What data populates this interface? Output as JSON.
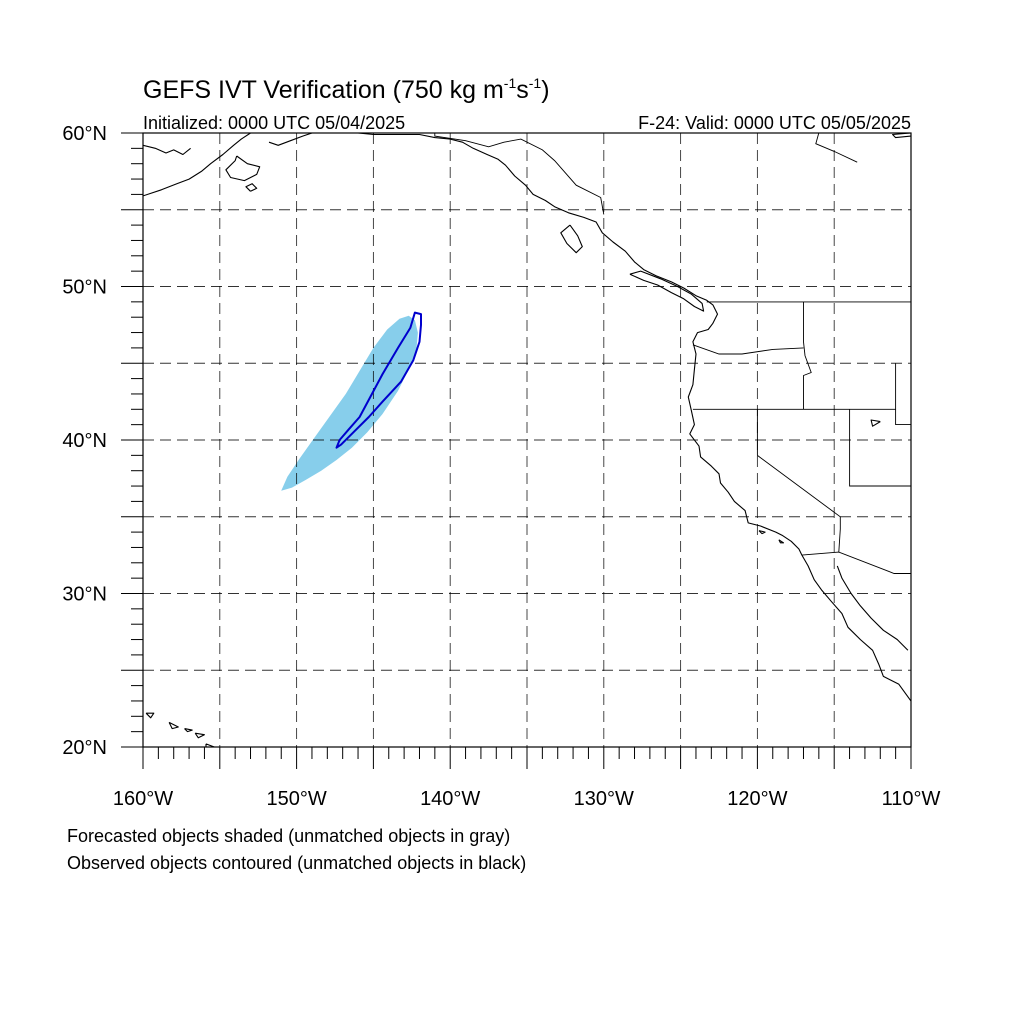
{
  "title": {
    "main": "GEFS IVT Verification (750 kg m",
    "exp1": "-1",
    "mid": "s",
    "exp2": "-1",
    "close": ")"
  },
  "subtitle": {
    "left": "Initialized: 0000 UTC 05/04/2025",
    "right": "F-24: Valid: 0000 UTC 05/05/2025"
  },
  "footnotes": [
    "Forecasted objects shaded (unmatched objects in gray)",
    "Observed objects contoured (unmatched objects in black)"
  ],
  "map": {
    "lon_range": [
      -160,
      -110
    ],
    "lat_range": [
      20,
      60
    ],
    "lat_labels": [
      {
        "value": 60,
        "text": "60°N"
      },
      {
        "value": 50,
        "text": "50°N"
      },
      {
        "value": 40,
        "text": "40°N"
      },
      {
        "value": 30,
        "text": "30°N"
      },
      {
        "value": 20,
        "text": "20°N"
      }
    ],
    "lon_labels": [
      {
        "value": -160,
        "text": "160°W"
      },
      {
        "value": -150,
        "text": "150°W"
      },
      {
        "value": -140,
        "text": "140°W"
      },
      {
        "value": -130,
        "text": "130°W"
      },
      {
        "value": -120,
        "text": "120°W"
      },
      {
        "value": -110,
        "text": "110°W"
      }
    ],
    "grid_lons": [
      -155,
      -150,
      -145,
      -140,
      -135,
      -130,
      -125,
      -120,
      -115
    ],
    "grid_lats": [
      25,
      30,
      35,
      40,
      45,
      50,
      55
    ],
    "forecast_color": "#87ceeb",
    "observed_color": "#0000cd",
    "coast_color": "#000000",
    "forecast_object": [
      [
        -151.0,
        36.7
      ],
      [
        -150.3,
        36.9
      ],
      [
        -149.4,
        37.4
      ],
      [
        -148.4,
        38.0
      ],
      [
        -147.4,
        38.7
      ],
      [
        -146.4,
        39.5
      ],
      [
        -145.4,
        40.5
      ],
      [
        -144.4,
        41.7
      ],
      [
        -143.4,
        43.2
      ],
      [
        -142.7,
        44.6
      ],
      [
        -142.2,
        45.9
      ],
      [
        -142.1,
        47.0
      ],
      [
        -142.3,
        47.8
      ],
      [
        -142.7,
        48.1
      ],
      [
        -143.3,
        47.9
      ],
      [
        -144.1,
        47.2
      ],
      [
        -145.0,
        46.0
      ],
      [
        -145.9,
        44.5
      ],
      [
        -146.8,
        43.0
      ],
      [
        -147.8,
        41.6
      ],
      [
        -148.8,
        40.2
      ],
      [
        -149.8,
        38.8
      ],
      [
        -150.6,
        37.6
      ]
    ],
    "observed_object": [
      [
        -147.4,
        39.5
      ],
      [
        -147.2,
        40.0
      ],
      [
        -146.6,
        40.7
      ],
      [
        -145.9,
        41.5
      ],
      [
        -145.2,
        42.8
      ],
      [
        -144.4,
        44.3
      ],
      [
        -143.4,
        46.0
      ],
      [
        -142.6,
        47.3
      ],
      [
        -142.3,
        48.3
      ],
      [
        -141.9,
        48.2
      ],
      [
        -141.9,
        47.5
      ],
      [
        -142.0,
        46.4
      ],
      [
        -142.4,
        45.2
      ],
      [
        -143.2,
        43.8
      ],
      [
        -144.4,
        42.5
      ],
      [
        -145.3,
        41.5
      ],
      [
        -146.3,
        40.5
      ],
      [
        -147.1,
        39.7
      ]
    ],
    "coastlines": [
      [
        [
          -160,
          55.9
        ],
        [
          -158.8,
          56.3
        ],
        [
          -157.8,
          56.7
        ],
        [
          -157.0,
          57.0
        ],
        [
          -156.2,
          57.5
        ],
        [
          -155.6,
          58.0
        ],
        [
          -154.8,
          58.6
        ],
        [
          -154.1,
          59.2
        ],
        [
          -153.6,
          59.6
        ],
        [
          -153.0,
          60.0
        ]
      ],
      [
        [
          -160,
          59.2
        ],
        [
          -159.2,
          59.0
        ],
        [
          -158.5,
          58.7
        ],
        [
          -158.0,
          58.9
        ],
        [
          -157.4,
          58.6
        ],
        [
          -156.9,
          59.0
        ]
      ],
      [
        [
          -153.9,
          58.5
        ],
        [
          -153.2,
          58.0
        ],
        [
          -152.4,
          57.8
        ],
        [
          -152.6,
          57.3
        ],
        [
          -153.4,
          56.9
        ],
        [
          -154.3,
          57.1
        ],
        [
          -154.6,
          57.6
        ],
        [
          -154.0,
          58.2
        ],
        [
          -153.9,
          58.5
        ]
      ],
      [
        [
          -153.0,
          56.2
        ],
        [
          -152.6,
          56.4
        ],
        [
          -152.9,
          56.7
        ],
        [
          -153.3,
          56.5
        ],
        [
          -153.0,
          56.2
        ]
      ],
      [
        [
          -151.8,
          59.4
        ],
        [
          -151.2,
          59.2
        ],
        [
          -150.4,
          59.5
        ],
        [
          -149.6,
          59.8
        ],
        [
          -149.0,
          60.0
        ]
      ],
      [
        [
          -146.0,
          60.0
        ],
        [
          -145.0,
          59.9
        ],
        [
          -144.0,
          59.9
        ],
        [
          -143.0,
          59.9
        ],
        [
          -142.0,
          59.9
        ],
        [
          -141.0,
          59.7
        ],
        [
          -140.0,
          59.6
        ],
        [
          -139.2,
          59.4
        ],
        [
          -138.5,
          59.0
        ],
        [
          -137.6,
          58.6
        ],
        [
          -136.9,
          58.3
        ],
        [
          -136.4,
          57.9
        ],
        [
          -135.8,
          57.2
        ],
        [
          -135.1,
          56.6
        ],
        [
          -134.6,
          56.0
        ],
        [
          -133.8,
          55.6
        ],
        [
          -133.2,
          55.2
        ],
        [
          -132.3,
          54.8
        ],
        [
          -131.3,
          54.5
        ],
        [
          -130.5,
          54.2
        ],
        [
          -130.1,
          53.5
        ],
        [
          -129.4,
          52.9
        ],
        [
          -128.6,
          52.3
        ],
        [
          -128.0,
          51.6
        ],
        [
          -127.4,
          51.1
        ],
        [
          -126.6,
          50.7
        ],
        [
          -125.6,
          50.3
        ],
        [
          -124.8,
          49.9
        ],
        [
          -124.0,
          49.4
        ],
        [
          -123.3,
          49.1
        ],
        [
          -122.9,
          48.8
        ],
        [
          -122.6,
          48.2
        ],
        [
          -122.9,
          47.6
        ],
        [
          -123.2,
          47.2
        ],
        [
          -123.9,
          47.0
        ],
        [
          -124.2,
          46.4
        ],
        [
          -124.0,
          45.6
        ],
        [
          -124.1,
          44.6
        ],
        [
          -124.2,
          43.6
        ],
        [
          -124.5,
          42.8
        ],
        [
          -124.3,
          41.9
        ],
        [
          -124.1,
          41.0
        ],
        [
          -124.4,
          40.4
        ],
        [
          -123.8,
          39.6
        ],
        [
          -123.7,
          38.9
        ],
        [
          -123.0,
          38.3
        ],
        [
          -122.5,
          37.8
        ],
        [
          -122.4,
          37.2
        ],
        [
          -121.9,
          36.6
        ],
        [
          -121.5,
          36.0
        ],
        [
          -120.8,
          35.4
        ],
        [
          -120.6,
          34.6
        ],
        [
          -119.8,
          34.4
        ],
        [
          -118.8,
          34.0
        ],
        [
          -118.4,
          33.8
        ],
        [
          -117.8,
          33.4
        ],
        [
          -117.3,
          32.9
        ],
        [
          -117.1,
          32.5
        ],
        [
          -116.7,
          31.8
        ],
        [
          -116.3,
          30.9
        ],
        [
          -115.8,
          30.2
        ],
        [
          -115.2,
          29.5
        ],
        [
          -114.5,
          28.7
        ],
        [
          -114.1,
          27.8
        ],
        [
          -113.3,
          27.0
        ],
        [
          -112.5,
          26.3
        ],
        [
          -112.1,
          25.4
        ],
        [
          -111.8,
          24.6
        ],
        [
          -110.8,
          24.1
        ],
        [
          -110.0,
          23.0
        ]
      ],
      [
        [
          -132.2,
          54.0
        ],
        [
          -131.7,
          53.3
        ],
        [
          -131.4,
          52.6
        ],
        [
          -131.8,
          52.2
        ],
        [
          -132.4,
          52.8
        ],
        [
          -132.8,
          53.5
        ],
        [
          -132.2,
          54.0
        ]
      ],
      [
        [
          -128.3,
          50.8
        ],
        [
          -127.4,
          50.4
        ],
        [
          -126.5,
          50.1
        ],
        [
          -125.6,
          49.6
        ],
        [
          -124.8,
          49.2
        ],
        [
          -124.1,
          48.7
        ],
        [
          -123.5,
          48.4
        ],
        [
          -123.6,
          48.9
        ],
        [
          -124.3,
          49.5
        ],
        [
          -125.2,
          50.0
        ],
        [
          -126.3,
          50.5
        ],
        [
          -127.6,
          51.0
        ],
        [
          -128.3,
          50.8
        ]
      ],
      [
        [
          -114.8,
          31.8
        ],
        [
          -114.5,
          31.0
        ],
        [
          -113.9,
          30.0
        ],
        [
          -113.3,
          29.2
        ],
        [
          -112.6,
          28.4
        ],
        [
          -111.8,
          27.6
        ],
        [
          -110.9,
          27.0
        ],
        [
          -110.2,
          26.3
        ]
      ],
      [
        [
          -155.9,
          20.2
        ],
        [
          -155.1,
          19.9
        ],
        [
          -154.8,
          19.5
        ],
        [
          -155.5,
          19.2
        ],
        [
          -155.9,
          19.6
        ],
        [
          -155.9,
          20.2
        ]
      ],
      [
        [
          -156.6,
          20.9
        ],
        [
          -156.0,
          20.8
        ],
        [
          -156.4,
          20.6
        ],
        [
          -156.6,
          20.9
        ]
      ],
      [
        [
          -157.3,
          21.2
        ],
        [
          -156.8,
          21.1
        ],
        [
          -157.1,
          21.0
        ],
        [
          -157.3,
          21.2
        ]
      ],
      [
        [
          -158.3,
          21.6
        ],
        [
          -157.7,
          21.3
        ],
        [
          -158.1,
          21.2
        ],
        [
          -158.3,
          21.6
        ]
      ],
      [
        [
          -159.8,
          22.2
        ],
        [
          -159.3,
          22.2
        ],
        [
          -159.5,
          21.9
        ],
        [
          -159.8,
          22.2
        ]
      ],
      [
        [
          -119.9,
          34.1
        ],
        [
          -119.5,
          34.0
        ],
        [
          -119.7,
          33.9
        ],
        [
          -119.9,
          34.1
        ]
      ],
      [
        [
          -118.6,
          33.5
        ],
        [
          -118.3,
          33.3
        ],
        [
          -118.5,
          33.3
        ],
        [
          -118.6,
          33.5
        ]
      ],
      [
        [
          -112.0,
          41.2
        ],
        [
          -112.6,
          41.3
        ],
        [
          -112.5,
          40.9
        ],
        [
          -112.0,
          41.2
        ]
      ],
      [
        [
          -110.0,
          59.8
        ],
        [
          -111.0,
          59.7
        ],
        [
          -111.2,
          59.9
        ],
        [
          -110.0,
          60.0
        ]
      ]
    ],
    "borders": [
      [
        [
          -123.3,
          49.0
        ],
        [
          -110.0,
          49.0
        ]
      ],
      [
        [
          -141.0,
          60.0
        ],
        [
          -141.0,
          59.8
        ],
        [
          -139.0,
          59.5
        ],
        [
          -137.5,
          59.1
        ],
        [
          -136.5,
          59.4
        ],
        [
          -135.4,
          59.6
        ],
        [
          -134.0,
          58.9
        ],
        [
          -133.2,
          58.2
        ],
        [
          -131.8,
          56.6
        ],
        [
          -130.2,
          55.8
        ],
        [
          -130.0,
          54.7
        ]
      ],
      [
        [
          -124.2,
          46.2
        ],
        [
          -122.5,
          45.6
        ],
        [
          -121.0,
          45.6
        ],
        [
          -119.0,
          45.9
        ],
        [
          -117.0,
          46.0
        ]
      ],
      [
        [
          -117.0,
          49.0
        ],
        [
          -117.0,
          46.4
        ],
        [
          -116.9,
          45.5
        ],
        [
          -116.5,
          44.4
        ],
        [
          -117.0,
          44.2
        ],
        [
          -117.0,
          42.0
        ]
      ],
      [
        [
          -124.2,
          42.0
        ],
        [
          -111.0,
          42.0
        ]
      ],
      [
        [
          -120.0,
          42.0
        ],
        [
          -120.0,
          39.0
        ],
        [
          -114.6,
          35.0
        ],
        [
          -114.6,
          34.2
        ],
        [
          -114.7,
          32.7
        ]
      ],
      [
        [
          -114.0,
          42.0
        ],
        [
          -114.0,
          37.0
        ],
        [
          -110.0,
          37.0
        ]
      ],
      [
        [
          -111.0,
          45.0
        ],
        [
          -111.0,
          41.0
        ],
        [
          -110.0,
          41.0
        ]
      ],
      [
        [
          -117.1,
          32.5
        ],
        [
          -114.7,
          32.7
        ],
        [
          -111.1,
          31.3
        ],
        [
          -110.0,
          31.3
        ]
      ],
      [
        [
          -116.0,
          60.0
        ],
        [
          -116.2,
          59.3
        ],
        [
          -115.0,
          58.8
        ],
        [
          -113.5,
          58.1
        ]
      ]
    ]
  }
}
